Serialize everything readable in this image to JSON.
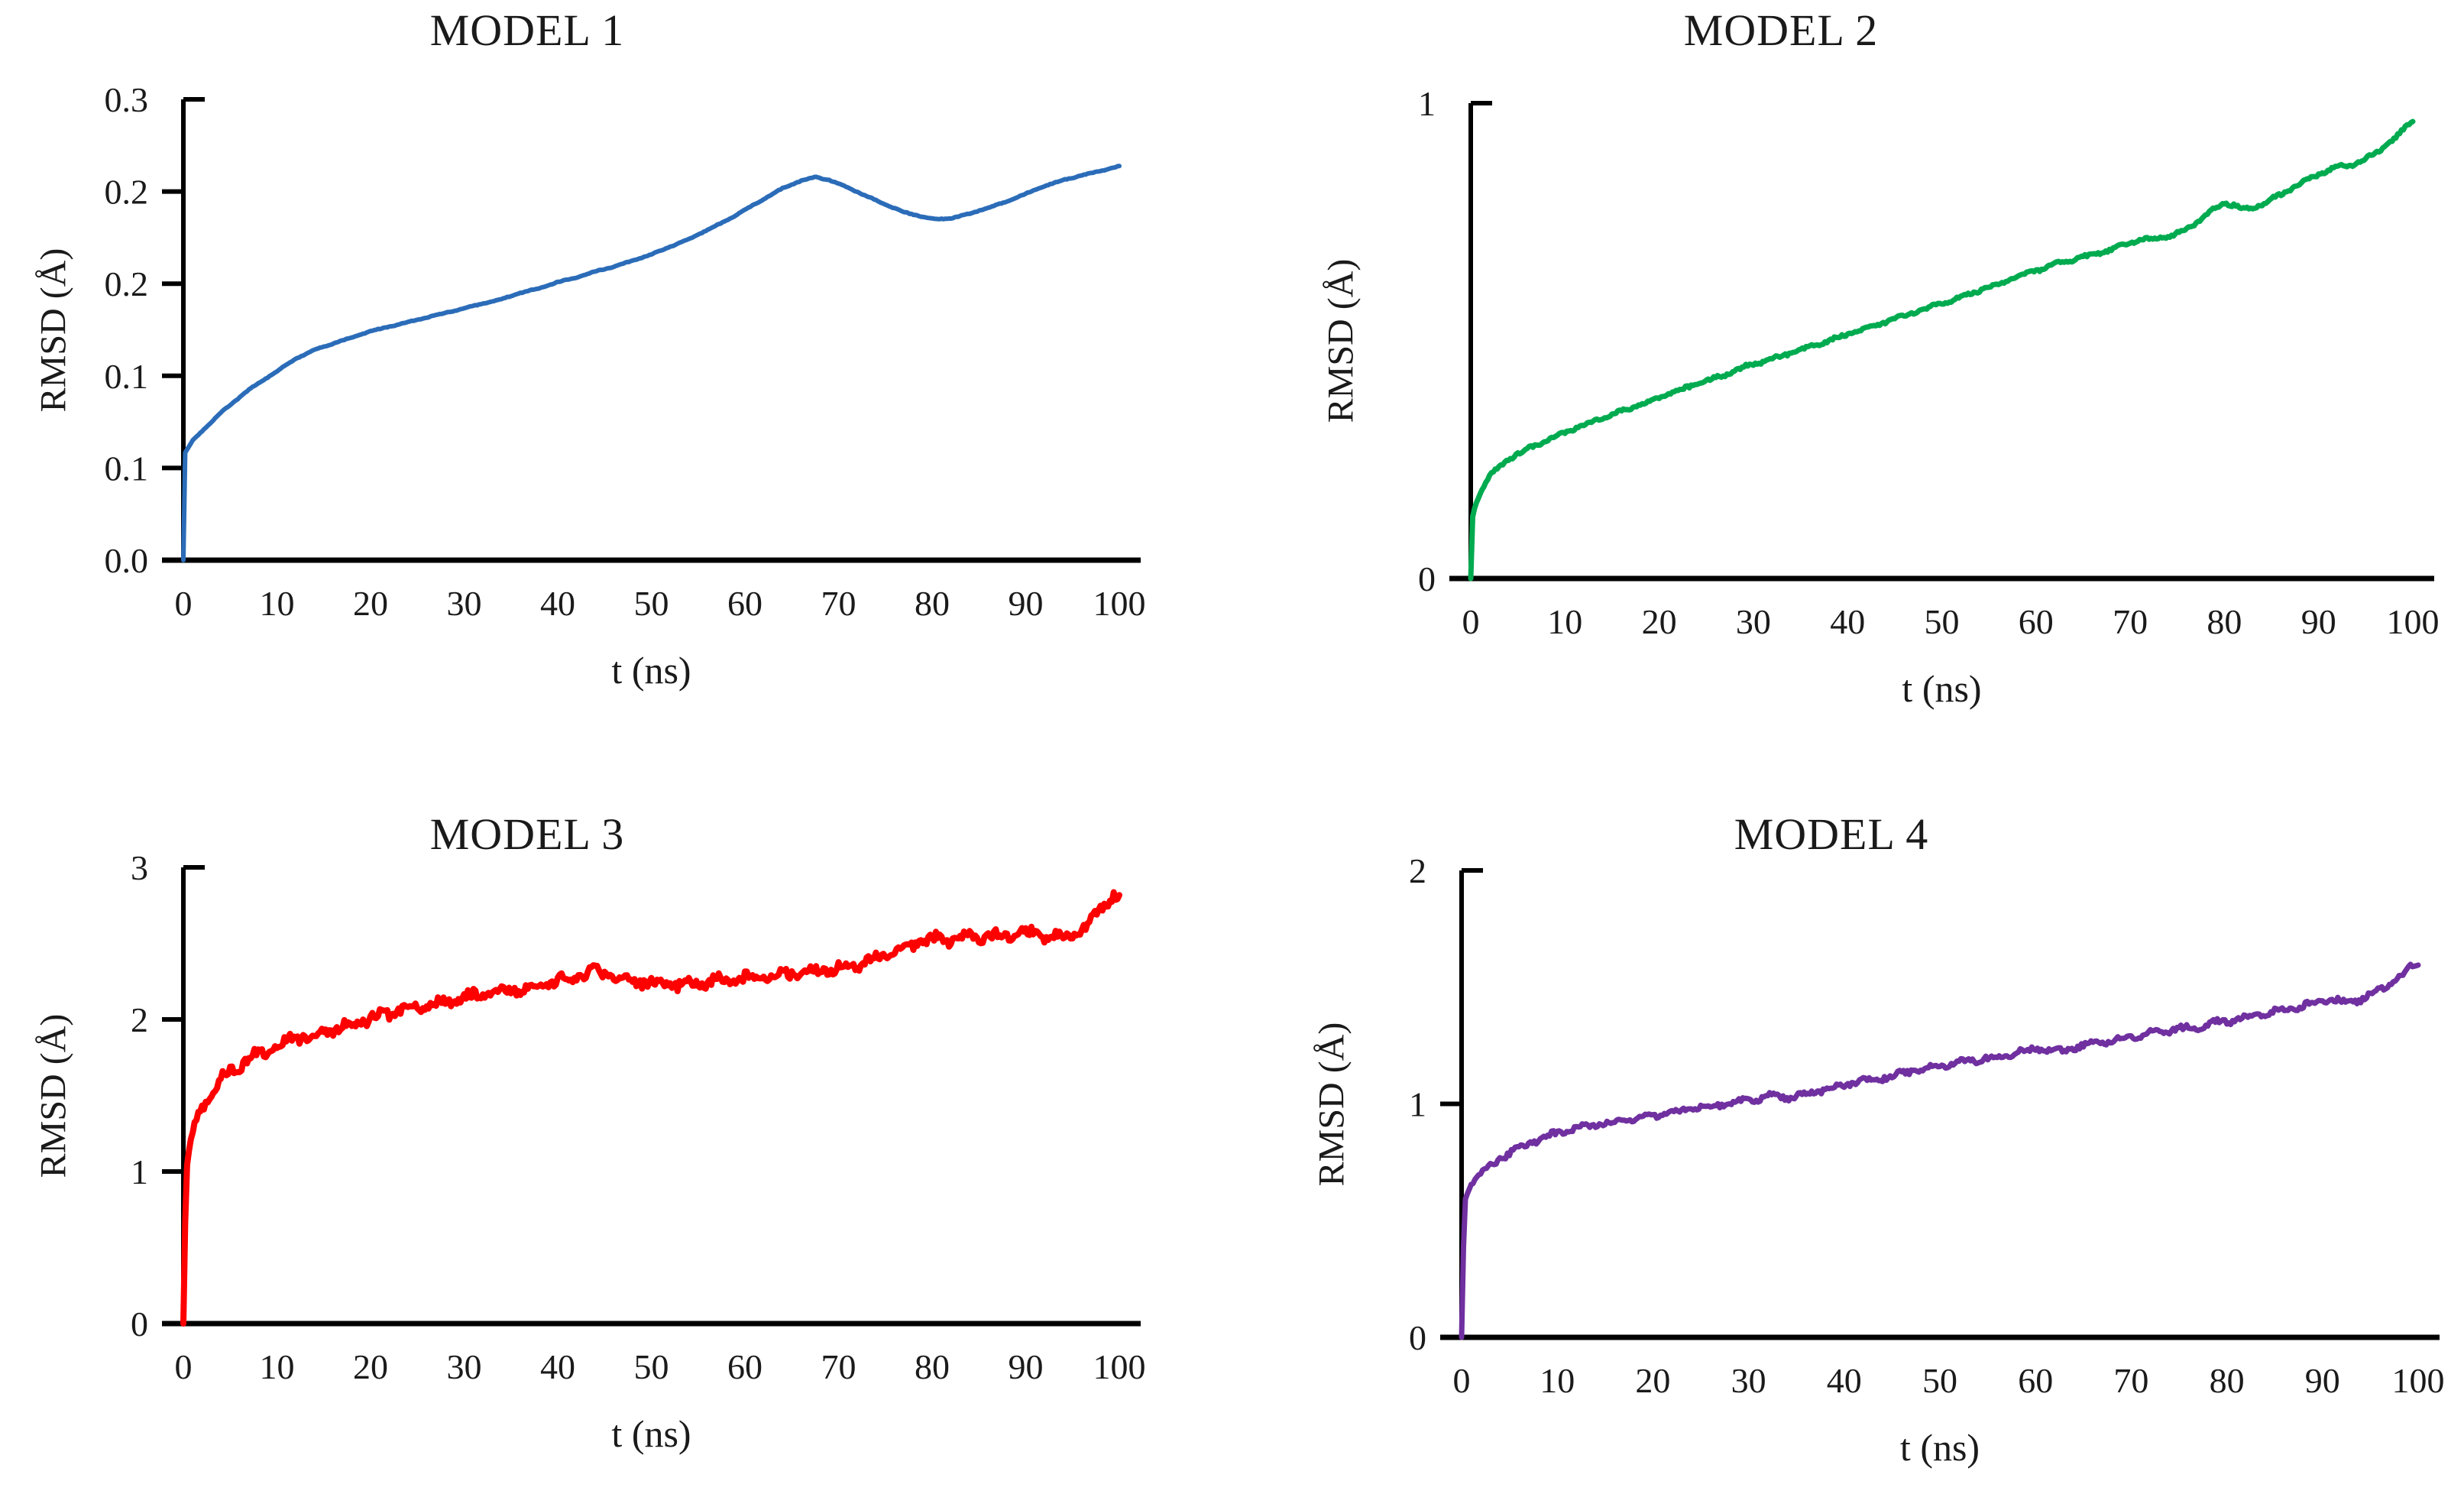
{
  "chart_data": [
    {
      "type": "line",
      "title": "MODEL 1",
      "x_label": "t (ns)",
      "y_label": "RMSD (Å)",
      "line_color": "#2B6CB8",
      "x_range": [
        0,
        100
      ],
      "y_range": [
        0,
        0.3
      ],
      "x_ticks": [
        "0",
        "10",
        "20",
        "30",
        "40",
        "50",
        "60",
        "70",
        "80",
        "90",
        "100"
      ],
      "y_tick_values": [
        0,
        0.06,
        0.12,
        0.18,
        0.24,
        0.3
      ],
      "y_tick_labels": [
        "0.0",
        "0.1",
        "0.1",
        "0.2",
        "0.2",
        "0.3"
      ],
      "noise": 0.0009,
      "points": [
        [
          0,
          0
        ],
        [
          0.2,
          0.07
        ],
        [
          1,
          0.078
        ],
        [
          2,
          0.084
        ],
        [
          3,
          0.09
        ],
        [
          4,
          0.096
        ],
        [
          5,
          0.101
        ],
        [
          6,
          0.106
        ],
        [
          7,
          0.111
        ],
        [
          8,
          0.115
        ],
        [
          9,
          0.119
        ],
        [
          10,
          0.123
        ],
        [
          11,
          0.127
        ],
        [
          12,
          0.131
        ],
        [
          13,
          0.134
        ],
        [
          14,
          0.137
        ],
        [
          15,
          0.139
        ],
        [
          16,
          0.141
        ],
        [
          17,
          0.143
        ],
        [
          18,
          0.145
        ],
        [
          20,
          0.149
        ],
        [
          22,
          0.152
        ],
        [
          24,
          0.155
        ],
        [
          26,
          0.158
        ],
        [
          28,
          0.161
        ],
        [
          30,
          0.164
        ],
        [
          32,
          0.167
        ],
        [
          34,
          0.17
        ],
        [
          36,
          0.174
        ],
        [
          38,
          0.177
        ],
        [
          40,
          0.181
        ],
        [
          42,
          0.184
        ],
        [
          44,
          0.188
        ],
        [
          46,
          0.191
        ],
        [
          48,
          0.195
        ],
        [
          50,
          0.199
        ],
        [
          52,
          0.204
        ],
        [
          54,
          0.209
        ],
        [
          56,
          0.215
        ],
        [
          58,
          0.221
        ],
        [
          60,
          0.228
        ],
        [
          62,
          0.235
        ],
        [
          64,
          0.242
        ],
        [
          66,
          0.247
        ],
        [
          67.5,
          0.2495
        ],
        [
          69,
          0.2475
        ],
        [
          71,
          0.2425
        ],
        [
          73,
          0.237
        ],
        [
          75,
          0.2315
        ],
        [
          77,
          0.2265
        ],
        [
          79,
          0.2235
        ],
        [
          80.5,
          0.222
        ],
        [
          82,
          0.2225
        ],
        [
          84,
          0.2255
        ],
        [
          86,
          0.2295
        ],
        [
          88,
          0.2335
        ],
        [
          90,
          0.2385
        ],
        [
          92,
          0.2435
        ],
        [
          94,
          0.2475
        ],
        [
          96,
          0.2505
        ],
        [
          98,
          0.2535
        ],
        [
          100,
          0.2565
        ]
      ]
    },
    {
      "type": "line",
      "title": "MODEL 2",
      "x_label": "t (ns)",
      "y_label": "RMSD (Å)",
      "line_color": "#00AB50",
      "x_range": [
        0,
        100
      ],
      "y_range": [
        0,
        1
      ],
      "x_ticks": [
        "0",
        "10",
        "20",
        "30",
        "40",
        "50",
        "60",
        "70",
        "80",
        "90",
        "100"
      ],
      "y_tick_values": [
        0,
        1
      ],
      "y_tick_labels": [
        "0",
        "1"
      ],
      "noise": 0.0035,
      "points": [
        [
          0,
          0
        ],
        [
          0.2,
          0.13
        ],
        [
          0.5,
          0.155
        ],
        [
          1,
          0.18
        ],
        [
          2,
          0.215
        ],
        [
          3,
          0.235
        ],
        [
          4,
          0.25
        ],
        [
          5,
          0.262
        ],
        [
          6,
          0.272
        ],
        [
          8,
          0.29
        ],
        [
          10,
          0.308
        ],
        [
          12,
          0.323
        ],
        [
          14,
          0.338
        ],
        [
          16,
          0.352
        ],
        [
          18,
          0.366
        ],
        [
          20,
          0.381
        ],
        [
          22,
          0.395
        ],
        [
          24,
          0.409
        ],
        [
          26,
          0.422
        ],
        [
          28,
          0.436
        ],
        [
          29.5,
          0.449
        ],
        [
          31,
          0.456
        ],
        [
          33,
          0.468
        ],
        [
          35,
          0.481
        ],
        [
          37,
          0.494
        ],
        [
          39,
          0.507
        ],
        [
          41,
          0.52
        ],
        [
          43,
          0.533
        ],
        [
          45,
          0.546
        ],
        [
          47,
          0.559
        ],
        [
          49,
          0.572
        ],
        [
          51,
          0.585
        ],
        [
          53,
          0.599
        ],
        [
          55,
          0.613
        ],
        [
          57,
          0.627
        ],
        [
          59,
          0.641
        ],
        [
          60.5,
          0.651
        ],
        [
          62,
          0.661
        ],
        [
          64,
          0.671
        ],
        [
          66,
          0.681
        ],
        [
          68,
          0.692
        ],
        [
          70,
          0.706
        ],
        [
          71.5,
          0.7135
        ],
        [
          73,
          0.7165
        ],
        [
          74.5,
          0.7215
        ],
        [
          76,
          0.735
        ],
        [
          77.5,
          0.7555
        ],
        [
          79,
          0.778
        ],
        [
          80,
          0.79
        ],
        [
          81,
          0.7855
        ],
        [
          82,
          0.7775
        ],
        [
          83,
          0.7795
        ],
        [
          84.5,
          0.7925
        ],
        [
          86,
          0.808
        ],
        [
          88,
          0.8305
        ],
        [
          90,
          0.8505
        ],
        [
          91.5,
          0.8625
        ],
        [
          92.5,
          0.868
        ],
        [
          93.5,
          0.869
        ],
        [
          95,
          0.8825
        ],
        [
          96.5,
          0.9005
        ],
        [
          98,
          0.9235
        ],
        [
          99,
          0.9445
        ],
        [
          100,
          0.9655
        ]
      ]
    },
    {
      "type": "line",
      "title": "MODEL 3",
      "x_label": "t (ns)",
      "y_label": "RMSD (Å)",
      "line_color": "#FF0000",
      "x_range": [
        0,
        100
      ],
      "y_range": [
        0,
        3
      ],
      "x_ticks": [
        "0",
        "10",
        "20",
        "30",
        "40",
        "50",
        "60",
        "70",
        "80",
        "90",
        "100"
      ],
      "y_tick_values": [
        0,
        1,
        2,
        3
      ],
      "y_tick_labels": [
        "0",
        "1",
        "2",
        "3"
      ],
      "noise": 0.013,
      "points": [
        [
          0,
          0
        ],
        [
          0.3,
          1.0
        ],
        [
          0.7,
          1.18
        ],
        [
          1,
          1.26
        ],
        [
          1.5,
          1.35
        ],
        [
          2,
          1.42
        ],
        [
          3,
          1.52
        ],
        [
          4,
          1.6
        ],
        [
          5,
          1.655
        ],
        [
          6,
          1.7
        ],
        [
          7,
          1.745
        ],
        [
          8,
          1.775
        ],
        [
          9,
          1.8
        ],
        [
          10,
          1.83
        ],
        [
          11,
          1.855
        ],
        [
          12,
          1.875
        ],
        [
          13,
          1.89
        ],
        [
          14,
          1.9
        ],
        [
          15,
          1.91
        ],
        [
          16,
          1.93
        ],
        [
          17,
          1.95
        ],
        [
          18,
          1.97
        ],
        [
          19,
          1.985
        ],
        [
          20,
          2.0
        ],
        [
          21,
          2.02
        ],
        [
          22,
          2.04
        ],
        [
          23,
          2.06
        ],
        [
          24,
          2.075
        ],
        [
          25,
          2.085
        ],
        [
          26,
          2.095
        ],
        [
          27,
          2.1
        ],
        [
          28,
          2.11
        ],
        [
          29,
          2.125
        ],
        [
          30,
          2.14
        ],
        [
          31,
          2.155
        ],
        [
          32,
          2.165
        ],
        [
          33,
          2.175
        ],
        [
          34,
          2.18
        ],
        [
          35,
          2.19
        ],
        [
          36,
          2.2
        ],
        [
          37,
          2.21
        ],
        [
          38,
          2.225
        ],
        [
          39,
          2.24
        ],
        [
          40,
          2.25
        ],
        [
          41,
          2.265
        ],
        [
          42,
          2.285
        ],
        [
          43,
          2.3
        ],
        [
          43.7,
          2.31
        ],
        [
          44.5,
          2.305
        ],
        [
          45.5,
          2.29
        ],
        [
          47,
          2.27
        ],
        [
          48.5,
          2.255
        ],
        [
          50,
          2.24
        ],
        [
          51.5,
          2.23
        ],
        [
          53,
          2.225
        ],
        [
          54.5,
          2.23
        ],
        [
          56,
          2.245
        ],
        [
          57.5,
          2.26
        ],
        [
          59,
          2.27
        ],
        [
          60.5,
          2.275
        ],
        [
          62,
          2.285
        ],
        [
          63.5,
          2.29
        ],
        [
          65,
          2.3
        ],
        [
          66.5,
          2.31
        ],
        [
          68,
          2.32
        ],
        [
          69.5,
          2.33
        ],
        [
          71,
          2.35
        ],
        [
          72.5,
          2.375
        ],
        [
          74,
          2.4
        ],
        [
          75.5,
          2.43
        ],
        [
          77,
          2.46
        ],
        [
          78,
          2.49
        ],
        [
          79,
          2.52
        ],
        [
          80,
          2.53
        ],
        [
          81,
          2.525
        ],
        [
          82,
          2.52
        ],
        [
          83,
          2.53
        ],
        [
          84,
          2.545
        ],
        [
          85,
          2.55
        ],
        [
          86,
          2.555
        ],
        [
          87,
          2.545
        ],
        [
          88,
          2.55
        ],
        [
          89,
          2.565
        ],
        [
          90,
          2.57
        ],
        [
          91,
          2.56
        ],
        [
          92,
          2.555
        ],
        [
          93,
          2.545
        ],
        [
          93.8,
          2.53
        ],
        [
          94.5,
          2.54
        ],
        [
          95.5,
          2.565
        ],
        [
          96.5,
          2.6
        ],
        [
          97.2,
          2.655
        ],
        [
          97.8,
          2.72
        ],
        [
          98.4,
          2.77
        ],
        [
          99,
          2.8
        ],
        [
          99.5,
          2.81
        ],
        [
          100,
          2.805
        ]
      ]
    },
    {
      "type": "line",
      "title": "MODEL 4",
      "x_label": "t (ns)",
      "y_label": "RMSD (Å)",
      "line_color": "#7030A0",
      "x_range": [
        0,
        100
      ],
      "y_range": [
        0,
        2
      ],
      "x_ticks": [
        "0",
        "10",
        "20",
        "30",
        "40",
        "50",
        "60",
        "70",
        "80",
        "90",
        "100"
      ],
      "y_tick_values": [
        0,
        1,
        2
      ],
      "y_tick_labels": [
        "0",
        "1",
        "2"
      ],
      "noise": 0.0065,
      "points": [
        [
          0,
          0
        ],
        [
          0.3,
          0.58
        ],
        [
          0.7,
          0.63
        ],
        [
          1,
          0.655
        ],
        [
          2,
          0.7
        ],
        [
          3,
          0.735
        ],
        [
          4,
          0.765
        ],
        [
          5,
          0.79
        ],
        [
          6,
          0.81
        ],
        [
          7,
          0.83
        ],
        [
          8,
          0.848
        ],
        [
          9,
          0.862
        ],
        [
          10,
          0.875
        ],
        [
          11,
          0.888
        ],
        [
          12,
          0.898
        ],
        [
          13,
          0.905
        ],
        [
          14,
          0.91
        ],
        [
          15,
          0.915
        ],
        [
          16,
          0.92
        ],
        [
          17,
          0.928
        ],
        [
          18,
          0.937
        ],
        [
          19,
          0.945
        ],
        [
          20,
          0.95
        ],
        [
          21,
          0.955
        ],
        [
          22,
          0.962
        ],
        [
          23,
          0.97
        ],
        [
          24,
          0.978
        ],
        [
          25,
          0.985
        ],
        [
          26,
          0.99
        ],
        [
          27,
          0.995
        ],
        [
          28,
          1.0
        ],
        [
          29,
          1.008
        ],
        [
          30,
          1.013
        ],
        [
          31,
          1.02
        ],
        [
          31.8,
          1.03
        ],
        [
          32.6,
          1.035
        ],
        [
          33.4,
          1.03
        ],
        [
          34.2,
          1.028
        ],
        [
          35,
          1.032
        ],
        [
          36,
          1.04
        ],
        [
          37,
          1.05
        ],
        [
          38,
          1.06
        ],
        [
          39,
          1.07
        ],
        [
          40,
          1.08
        ],
        [
          41,
          1.09
        ],
        [
          42,
          1.1
        ],
        [
          43,
          1.107
        ],
        [
          44,
          1.112
        ],
        [
          45,
          1.12
        ],
        [
          46,
          1.13
        ],
        [
          47,
          1.14
        ],
        [
          48,
          1.15
        ],
        [
          49,
          1.158
        ],
        [
          50,
          1.163
        ],
        [
          51,
          1.17
        ],
        [
          52,
          1.178
        ],
        [
          53,
          1.185
        ],
        [
          54,
          1.19
        ],
        [
          55,
          1.195
        ],
        [
          56,
          1.2
        ],
        [
          57,
          1.21
        ],
        [
          58,
          1.22
        ],
        [
          59,
          1.228
        ],
        [
          60,
          1.235
        ],
        [
          61,
          1.23
        ],
        [
          62,
          1.222
        ],
        [
          63,
          1.228
        ],
        [
          64,
          1.24
        ],
        [
          65,
          1.25
        ],
        [
          66,
          1.258
        ],
        [
          67,
          1.265
        ],
        [
          68,
          1.27
        ],
        [
          69,
          1.278
        ],
        [
          70,
          1.285
        ],
        [
          71,
          1.295
        ],
        [
          72,
          1.305
        ],
        [
          73,
          1.31
        ],
        [
          74,
          1.315
        ],
        [
          75,
          1.32
        ],
        [
          76,
          1.325
        ],
        [
          77,
          1.33
        ],
        [
          78,
          1.34
        ],
        [
          79,
          1.35
        ],
        [
          80,
          1.355
        ],
        [
          81,
          1.36
        ],
        [
          82,
          1.37
        ],
        [
          83,
          1.38
        ],
        [
          84,
          1.388
        ],
        [
          85,
          1.395
        ],
        [
          86,
          1.4
        ],
        [
          87,
          1.41
        ],
        [
          88,
          1.42
        ],
        [
          89,
          1.43
        ],
        [
          90,
          1.44
        ],
        [
          91,
          1.445
        ],
        [
          91.8,
          1.44
        ],
        [
          92.6,
          1.432
        ],
        [
          93.4,
          1.44
        ],
        [
          94.2,
          1.45
        ],
        [
          95,
          1.47
        ],
        [
          96,
          1.49
        ],
        [
          97,
          1.51
        ],
        [
          98,
          1.54
        ],
        [
          98.7,
          1.565
        ],
        [
          99.3,
          1.59
        ],
        [
          99.7,
          1.605
        ],
        [
          100,
          1.595
        ]
      ]
    }
  ]
}
